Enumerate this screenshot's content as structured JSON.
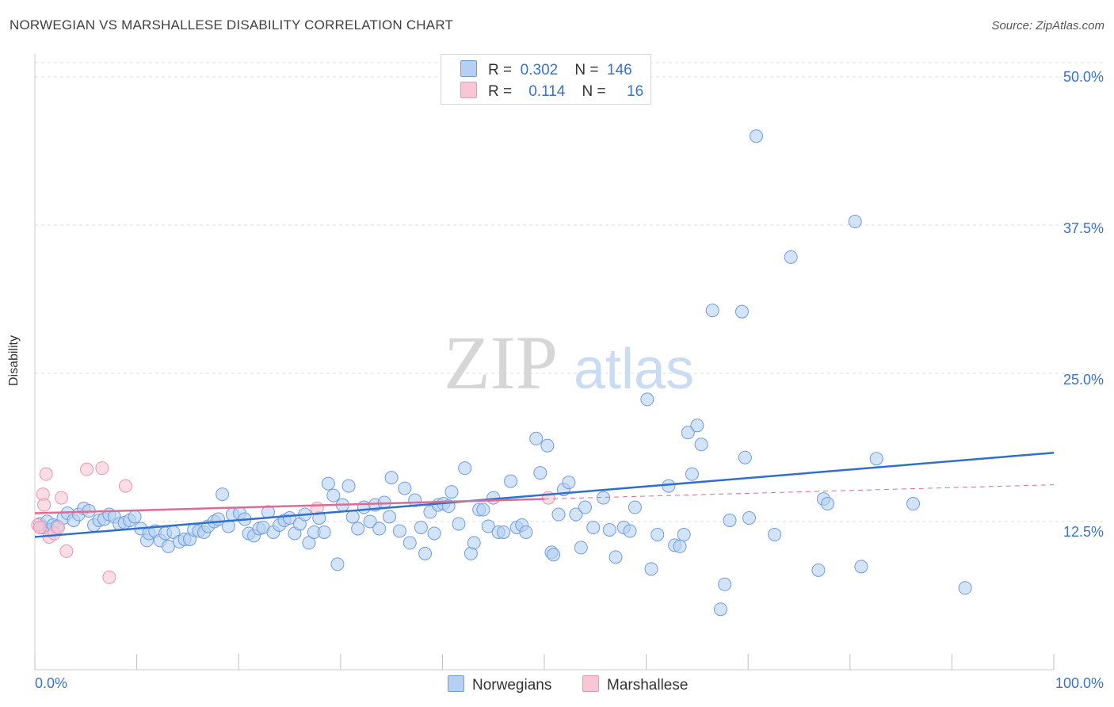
{
  "header": {
    "title": "NORWEGIAN VS MARSHALLESE DISABILITY CORRELATION CHART",
    "source": "Source: ZipAtlas.com"
  },
  "watermark": {
    "zip": "ZIP",
    "atlas": "atlas"
  },
  "legend": {
    "rows": [
      {
        "r_label": "R =",
        "r_value": "0.302",
        "n_label": "N =",
        "n_value": "146"
      },
      {
        "r_label": "R =",
        "r_value": "0.114",
        "n_label": "N =",
        "n_value": "16"
      }
    ]
  },
  "colors": {
    "norwegians_fill": "#b6d0f3",
    "norwegians_stroke": "#6f9ddc",
    "norwegians_line": "#2f6fcd",
    "marshallese_fill": "#f8c6d4",
    "marshallese_stroke": "#e996b0",
    "marshallese_line": "#e06a93",
    "grid": "#dcdcdc",
    "tick_label": "#3a73c9"
  },
  "chart_data": {
    "type": "scatter",
    "title": "NORWEGIAN VS MARSHALLESE DISABILITY CORRELATION CHART",
    "xlabel": "",
    "ylabel": "Disability",
    "xlim": [
      0,
      100
    ],
    "ylim": [
      0,
      50
    ],
    "x_tick_labels": [
      "0.0%",
      "100.0%"
    ],
    "y_ticks": [
      12.5,
      25.0,
      37.5,
      50.0
    ],
    "y_tick_labels": [
      "12.5%",
      "25.0%",
      "37.5%",
      "50.0%"
    ],
    "grid": "horizontal dashed",
    "legend_position": "top-center",
    "series": [
      {
        "name": "Norwegians",
        "r": 0.302,
        "n": 146,
        "trend": {
          "x0": 0,
          "y0": 11.2,
          "x1": 100,
          "y1": 18.3,
          "x_end": 100
        },
        "points": [
          [
            0.5,
            12.3
          ],
          [
            0.8,
            12.0
          ],
          [
            1.2,
            12.5
          ],
          [
            1.5,
            11.8
          ],
          [
            1.8,
            12.2
          ],
          [
            2.2,
            12.1
          ],
          [
            2.8,
            12.8
          ],
          [
            3.2,
            13.2
          ],
          [
            3.8,
            12.6
          ],
          [
            4.3,
            13.1
          ],
          [
            4.8,
            13.6
          ],
          [
            5.3,
            13.4
          ],
          [
            5.8,
            12.2
          ],
          [
            6.3,
            12.6
          ],
          [
            6.8,
            12.7
          ],
          [
            7.3,
            13.1
          ],
          [
            7.8,
            12.9
          ],
          [
            8.3,
            12.3
          ],
          [
            8.8,
            12.4
          ],
          [
            9.3,
            12.6
          ],
          [
            9.8,
            12.9
          ],
          [
            10.4,
            11.9
          ],
          [
            11.0,
            10.9
          ],
          [
            11.2,
            11.5
          ],
          [
            11.8,
            11.7
          ],
          [
            12.3,
            10.9
          ],
          [
            12.8,
            11.5
          ],
          [
            13.1,
            10.4
          ],
          [
            13.6,
            11.6
          ],
          [
            14.2,
            10.8
          ],
          [
            14.7,
            11.0
          ],
          [
            15.2,
            11.0
          ],
          [
            15.6,
            11.8
          ],
          [
            16.1,
            11.7
          ],
          [
            16.6,
            11.6
          ],
          [
            17.0,
            12.1
          ],
          [
            17.6,
            12.5
          ],
          [
            18.0,
            12.7
          ],
          [
            18.4,
            14.8
          ],
          [
            19.0,
            12.1
          ],
          [
            19.4,
            13.1
          ],
          [
            20.1,
            13.2
          ],
          [
            20.6,
            12.7
          ],
          [
            21.0,
            11.5
          ],
          [
            21.5,
            11.3
          ],
          [
            22.0,
            11.9
          ],
          [
            22.4,
            12.0
          ],
          [
            22.9,
            13.3
          ],
          [
            23.4,
            11.6
          ],
          [
            24.0,
            12.2
          ],
          [
            24.5,
            12.6
          ],
          [
            25.0,
            12.8
          ],
          [
            25.5,
            11.5
          ],
          [
            26.0,
            12.3
          ],
          [
            26.5,
            13.1
          ],
          [
            26.9,
            10.7
          ],
          [
            27.4,
            11.6
          ],
          [
            27.9,
            12.8
          ],
          [
            28.4,
            11.6
          ],
          [
            28.8,
            15.7
          ],
          [
            29.3,
            14.7
          ],
          [
            29.7,
            8.9
          ],
          [
            30.2,
            13.9
          ],
          [
            30.8,
            15.5
          ],
          [
            31.2,
            12.9
          ],
          [
            31.7,
            11.9
          ],
          [
            32.3,
            13.7
          ],
          [
            32.9,
            12.5
          ],
          [
            33.4,
            13.9
          ],
          [
            33.8,
            11.9
          ],
          [
            34.3,
            14.1
          ],
          [
            34.8,
            12.9
          ],
          [
            35.0,
            16.2
          ],
          [
            35.8,
            11.7
          ],
          [
            36.3,
            15.3
          ],
          [
            36.8,
            10.7
          ],
          [
            37.3,
            14.3
          ],
          [
            37.9,
            12.0
          ],
          [
            38.3,
            9.8
          ],
          [
            38.8,
            13.3
          ],
          [
            39.2,
            11.5
          ],
          [
            39.6,
            13.9
          ],
          [
            40.1,
            14.0
          ],
          [
            40.6,
            13.8
          ],
          [
            40.9,
            15.0
          ],
          [
            41.6,
            12.3
          ],
          [
            42.2,
            17.0
          ],
          [
            42.8,
            9.8
          ],
          [
            43.1,
            10.7
          ],
          [
            43.6,
            13.5
          ],
          [
            44.0,
            13.5
          ],
          [
            44.5,
            12.1
          ],
          [
            45.0,
            14.5
          ],
          [
            45.5,
            11.6
          ],
          [
            46.0,
            11.6
          ],
          [
            46.7,
            15.9
          ],
          [
            47.3,
            12.0
          ],
          [
            47.8,
            12.2
          ],
          [
            48.2,
            11.6
          ],
          [
            49.2,
            19.5
          ],
          [
            49.6,
            16.6
          ],
          [
            50.3,
            18.9
          ],
          [
            50.7,
            9.9
          ],
          [
            50.9,
            9.7
          ],
          [
            51.4,
            13.1
          ],
          [
            51.9,
            15.2
          ],
          [
            52.4,
            15.8
          ],
          [
            53.1,
            13.1
          ],
          [
            53.6,
            10.3
          ],
          [
            54.0,
            13.7
          ],
          [
            54.8,
            12.0
          ],
          [
            55.8,
            14.5
          ],
          [
            56.4,
            11.8
          ],
          [
            57.0,
            9.5
          ],
          [
            57.8,
            12.0
          ],
          [
            58.4,
            11.7
          ],
          [
            58.9,
            13.7
          ],
          [
            60.1,
            22.8
          ],
          [
            60.5,
            8.5
          ],
          [
            61.1,
            11.4
          ],
          [
            62.2,
            15.5
          ],
          [
            62.8,
            10.5
          ],
          [
            63.3,
            10.4
          ],
          [
            63.7,
            11.4
          ],
          [
            64.1,
            20.0
          ],
          [
            64.5,
            16.5
          ],
          [
            65.0,
            20.6
          ],
          [
            65.4,
            19.0
          ],
          [
            66.5,
            30.3
          ],
          [
            67.3,
            5.1
          ],
          [
            67.7,
            7.2
          ],
          [
            68.2,
            12.6
          ],
          [
            69.4,
            30.2
          ],
          [
            69.7,
            17.9
          ],
          [
            70.1,
            12.8
          ],
          [
            70.8,
            45.0
          ],
          [
            72.6,
            11.4
          ],
          [
            74.2,
            34.8
          ],
          [
            76.9,
            8.4
          ],
          [
            77.4,
            14.4
          ],
          [
            77.8,
            14.0
          ],
          [
            80.5,
            37.8
          ],
          [
            81.1,
            8.7
          ],
          [
            82.6,
            17.8
          ],
          [
            86.2,
            14.0
          ],
          [
            91.3,
            6.9
          ]
        ]
      },
      {
        "name": "Marshallese",
        "r": 0.114,
        "n": 16,
        "trend": {
          "x0": 0,
          "y0": 13.2,
          "x1": 100,
          "y1": 15.6,
          "x_end": 50
        },
        "points": [
          [
            0.3,
            12.2
          ],
          [
            0.5,
            12.0
          ],
          [
            0.8,
            14.8
          ],
          [
            0.9,
            13.9
          ],
          [
            1.1,
            16.5
          ],
          [
            1.4,
            11.2
          ],
          [
            1.9,
            11.5
          ],
          [
            2.3,
            12.0
          ],
          [
            2.6,
            14.5
          ],
          [
            3.1,
            10.0
          ],
          [
            5.1,
            16.9
          ],
          [
            6.6,
            17.0
          ],
          [
            7.3,
            7.8
          ],
          [
            8.9,
            15.5
          ],
          [
            27.7,
            13.6
          ],
          [
            50.4,
            14.5
          ]
        ]
      }
    ]
  }
}
